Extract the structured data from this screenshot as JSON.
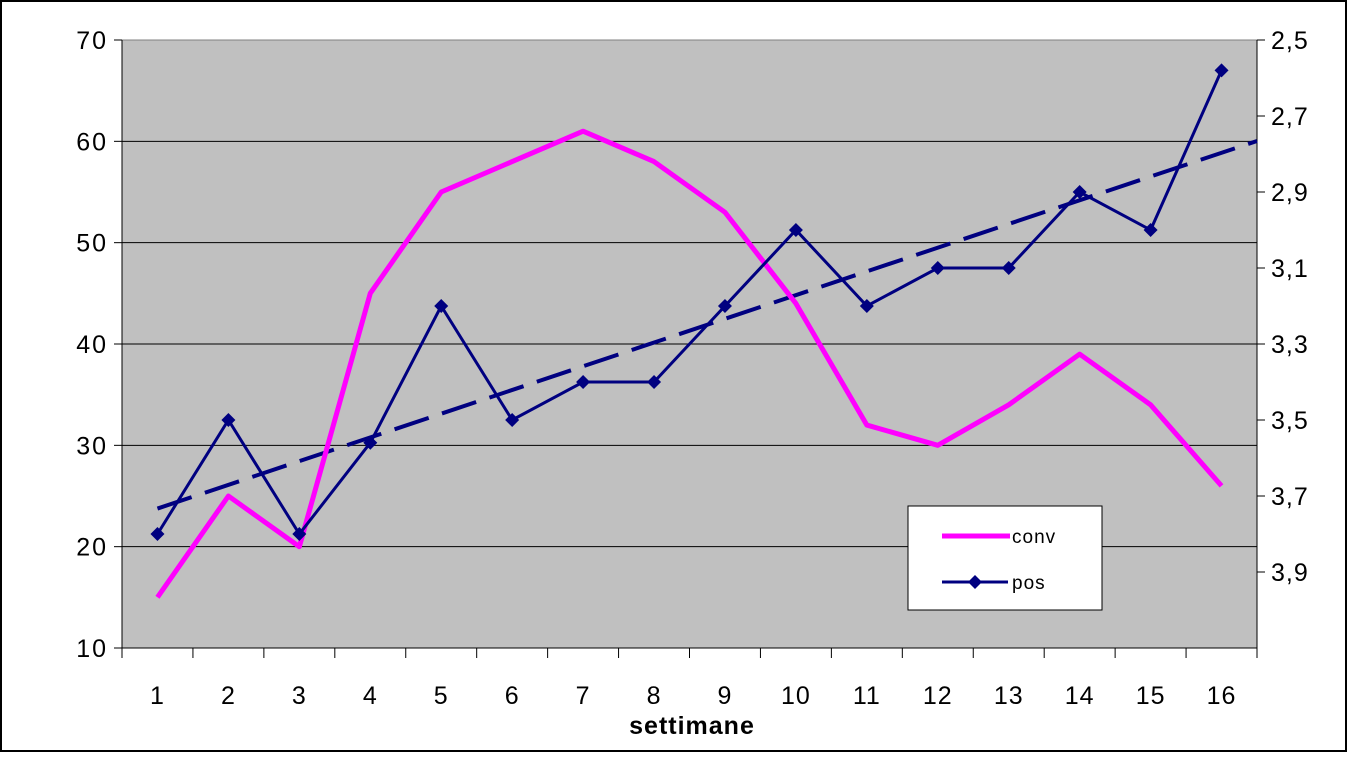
{
  "chart_data": {
    "type": "line",
    "xlabel": "settimane",
    "categories": [
      "1",
      "2",
      "3",
      "4",
      "5",
      "6",
      "7",
      "8",
      "9",
      "10",
      "11",
      "12",
      "13",
      "14",
      "15",
      "16"
    ],
    "y_left": {
      "ticks": [
        "10",
        "20",
        "30",
        "40",
        "50",
        "60",
        "70"
      ],
      "ylim": [
        10,
        70
      ]
    },
    "y_right": {
      "ticks": [
        "2,5",
        "2,7",
        "2,9",
        "3,1",
        "3,3",
        "3,5",
        "3,7",
        "3,9"
      ],
      "ylim": [
        2.5,
        4.1
      ],
      "reversed": true
    },
    "grid": true,
    "legend_position": "lower-right",
    "series": [
      {
        "name": "conv",
        "axis": "left",
        "color": "#ff00ff",
        "marker": "none",
        "values": [
          15,
          25,
          20,
          45,
          55,
          58,
          61,
          58,
          53,
          44,
          32,
          30,
          34,
          39,
          34,
          26
        ]
      },
      {
        "name": "pos",
        "axis": "right",
        "color": "#000080",
        "marker": "diamond",
        "values": [
          3.8,
          3.5,
          3.8,
          3.56,
          3.2,
          3.5,
          3.4,
          3.4,
          3.2,
          3.0,
          3.2,
          3.1,
          3.1,
          2.9,
          3.0,
          2.58
        ]
      }
    ],
    "trendline": {
      "series": "pos",
      "style": "dashed",
      "color": "#000080"
    }
  }
}
